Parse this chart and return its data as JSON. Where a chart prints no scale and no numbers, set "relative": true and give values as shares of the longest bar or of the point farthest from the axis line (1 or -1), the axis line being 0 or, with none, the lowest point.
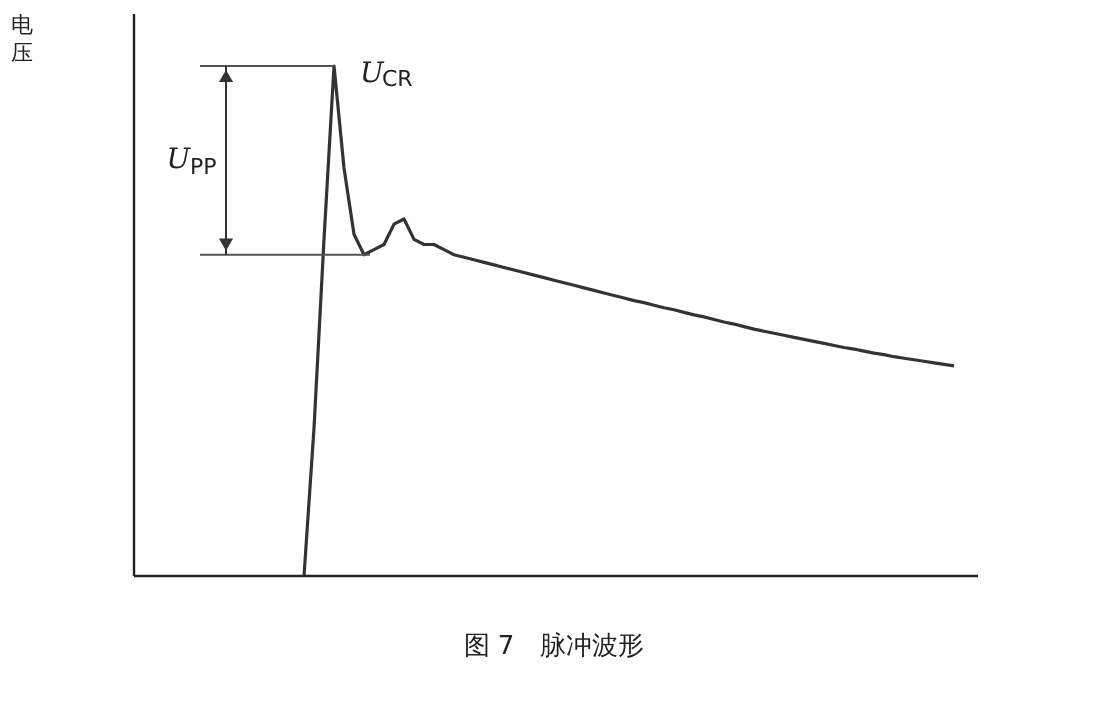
{
  "chart_data": {
    "type": "line",
    "relative": true,
    "title": "图 7　脉冲波形",
    "ylabel": "电压",
    "categories": [
      null,
      null,
      null,
      null,
      null,
      null,
      null,
      null,
      null,
      null,
      null,
      null,
      null,
      null,
      null,
      null,
      null,
      null,
      null,
      null,
      null,
      null,
      null,
      null,
      null,
      null,
      null,
      null,
      null,
      null,
      null,
      null,
      null,
      null,
      null,
      null,
      null,
      null,
      null,
      null,
      null,
      null,
      null,
      null,
      null,
      null,
      null,
      null,
      null,
      null,
      null,
      null,
      null,
      null,
      null,
      null,
      null,
      null,
      null,
      null,
      null,
      null,
      null,
      null,
      null,
      null,
      null,
      null,
      null,
      null,
      null,
      null,
      null,
      null,
      null,
      null,
      null,
      null,
      null,
      null,
      null,
      null,
      null,
      null,
      null
    ],
    "series": [
      {
        "color": "#333333",
        "values": [
          null,
          null,
          null,
          null,
          null,
          null,
          null,
          null,
          null,
          null,
          null,
          null,
          null,
          null,
          null,
          null,
          null,
          0,
          0.29,
          0.66,
          1.0,
          0.8,
          0.67,
          0.63,
          0.64,
          0.65,
          0.69,
          0.7,
          0.66,
          0.65,
          0.65,
          0.64,
          0.63,
          0.625,
          0.62,
          0.615,
          0.61,
          0.605,
          0.6,
          0.595,
          0.59,
          0.585,
          0.58,
          0.575,
          0.57,
          0.565,
          0.56,
          0.555,
          0.55,
          0.545,
          0.54,
          0.536,
          0.531,
          0.526,
          0.522,
          0.517,
          0.512,
          0.508,
          0.503,
          0.498,
          0.494,
          0.489,
          0.484,
          0.48,
          0.476,
          0.472,
          0.468,
          0.464,
          0.46,
          0.456,
          0.452,
          0.448,
          0.445,
          0.441,
          0.437,
          0.434,
          0.43,
          0.427,
          0.424,
          0.421,
          0.418,
          0.415,
          0.412,
          null,
          null
        ]
      }
    ],
    "ref_lines": [
      {
        "axis": "y",
        "value": 1.0,
        "color": "#555555"
      },
      {
        "axis": "y",
        "value": 0.63,
        "color": "#555555"
      }
    ],
    "annotations": [
      "U$_{CR}$",
      "U$_{PP}$"
    ],
    "grid": false,
    "marker": "none",
    "line_style": "solid"
  }
}
